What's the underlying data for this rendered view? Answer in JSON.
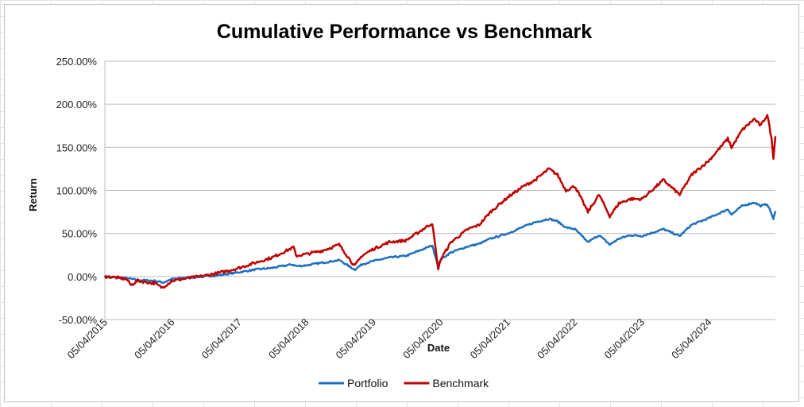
{
  "chart_data": {
    "type": "line",
    "title": "Cumulative Performance vs Benchmark",
    "xlabel": "Date",
    "ylabel": "Return",
    "x_tick_labels": [
      "05/04/2015",
      "05/04/2016",
      "05/04/2017",
      "05/04/2018",
      "05/04/2019",
      "05/04/2020",
      "05/04/2021",
      "05/04/2022",
      "05/04/2023",
      "05/04/2024"
    ],
    "x_range": [
      "2015-04-05",
      "2025-03-31"
    ],
    "y_tick_labels": [
      "-50.00%",
      "0.00%",
      "50.00%",
      "100.00%",
      "150.00%",
      "200.00%",
      "250.00%"
    ],
    "ylim": [
      -50,
      250
    ],
    "grid": "horizontal",
    "legend": "bottom",
    "series": [
      {
        "name": "Portfolio",
        "color": "#1f6fbf",
        "points": [
          [
            "2015-04-05",
            0
          ],
          [
            "2015-06-01",
            -1
          ],
          [
            "2015-08-01",
            -2
          ],
          [
            "2015-10-01",
            -4
          ],
          [
            "2016-01-01",
            -5
          ],
          [
            "2016-02-15",
            -7
          ],
          [
            "2016-04-05",
            -3
          ],
          [
            "2016-07-01",
            -1
          ],
          [
            "2016-10-01",
            0
          ],
          [
            "2017-01-01",
            2
          ],
          [
            "2017-04-05",
            5
          ],
          [
            "2017-07-01",
            8
          ],
          [
            "2017-10-01",
            10
          ],
          [
            "2018-01-15",
            14
          ],
          [
            "2018-02-15",
            12
          ],
          [
            "2018-04-05",
            13
          ],
          [
            "2018-07-01",
            16
          ],
          [
            "2018-10-01",
            19
          ],
          [
            "2018-12-24",
            8
          ],
          [
            "2019-02-01",
            14
          ],
          [
            "2019-04-05",
            18
          ],
          [
            "2019-07-01",
            22
          ],
          [
            "2019-10-01",
            24
          ],
          [
            "2020-02-19",
            36
          ],
          [
            "2020-03-23",
            12
          ],
          [
            "2020-04-05",
            20
          ],
          [
            "2020-06-01",
            28
          ],
          [
            "2020-09-01",
            35
          ],
          [
            "2020-11-01",
            38
          ],
          [
            "2021-01-01",
            44
          ],
          [
            "2021-04-05",
            50
          ],
          [
            "2021-07-01",
            58
          ],
          [
            "2021-09-01",
            63
          ],
          [
            "2021-11-15",
            67
          ],
          [
            "2022-01-01",
            64
          ],
          [
            "2022-02-15",
            57
          ],
          [
            "2022-04-05",
            55
          ],
          [
            "2022-06-15",
            40
          ],
          [
            "2022-08-15",
            48
          ],
          [
            "2022-10-12",
            37
          ],
          [
            "2022-12-01",
            44
          ],
          [
            "2023-02-01",
            48
          ],
          [
            "2023-04-05",
            47
          ],
          [
            "2023-07-31",
            55
          ],
          [
            "2023-10-27",
            47
          ],
          [
            "2023-12-31",
            60
          ],
          [
            "2024-04-05",
            68
          ],
          [
            "2024-07-15",
            78
          ],
          [
            "2024-08-05",
            72
          ],
          [
            "2024-10-01",
            82
          ],
          [
            "2024-12-06",
            86
          ],
          [
            "2025-01-10",
            82
          ],
          [
            "2025-02-15",
            84
          ],
          [
            "2025-03-10",
            73
          ],
          [
            "2025-03-20",
            66
          ],
          [
            "2025-03-31",
            76
          ]
        ]
      },
      {
        "name": "Benchmark",
        "color": "#c00000",
        "points": [
          [
            "2015-04-05",
            0
          ],
          [
            "2015-06-01",
            -1
          ],
          [
            "2015-08-01",
            -3
          ],
          [
            "2015-08-25",
            -10
          ],
          [
            "2015-10-01",
            -5
          ],
          [
            "2016-01-01",
            -8
          ],
          [
            "2016-02-11",
            -13
          ],
          [
            "2016-04-05",
            -5
          ],
          [
            "2016-07-01",
            -2
          ],
          [
            "2016-10-01",
            1
          ],
          [
            "2017-01-01",
            5
          ],
          [
            "2017-04-05",
            10
          ],
          [
            "2017-07-01",
            16
          ],
          [
            "2017-10-01",
            22
          ],
          [
            "2018-01-26",
            34
          ],
          [
            "2018-02-08",
            24
          ],
          [
            "2018-04-05",
            26
          ],
          [
            "2018-07-01",
            30
          ],
          [
            "2018-10-01",
            37
          ],
          [
            "2018-12-24",
            12
          ],
          [
            "2019-02-01",
            24
          ],
          [
            "2019-04-05",
            32
          ],
          [
            "2019-07-01",
            40
          ],
          [
            "2019-10-01",
            42
          ],
          [
            "2020-02-19",
            62
          ],
          [
            "2020-03-23",
            8
          ],
          [
            "2020-04-05",
            20
          ],
          [
            "2020-06-01",
            40
          ],
          [
            "2020-09-01",
            55
          ],
          [
            "2020-11-01",
            60
          ],
          [
            "2021-01-01",
            75
          ],
          [
            "2021-04-05",
            92
          ],
          [
            "2021-07-01",
            105
          ],
          [
            "2021-09-01",
            112
          ],
          [
            "2021-11-15",
            125
          ],
          [
            "2022-01-01",
            118
          ],
          [
            "2022-02-15",
            100
          ],
          [
            "2022-04-05",
            105
          ],
          [
            "2022-06-15",
            75
          ],
          [
            "2022-08-15",
            95
          ],
          [
            "2022-10-12",
            70
          ],
          [
            "2022-12-01",
            85
          ],
          [
            "2023-02-01",
            90
          ],
          [
            "2023-04-05",
            90
          ],
          [
            "2023-07-31",
            112
          ],
          [
            "2023-10-27",
            95
          ],
          [
            "2023-12-31",
            118
          ],
          [
            "2024-04-05",
            135
          ],
          [
            "2024-07-15",
            160
          ],
          [
            "2024-08-05",
            150
          ],
          [
            "2024-10-01",
            170
          ],
          [
            "2024-12-06",
            183
          ],
          [
            "2025-01-10",
            175
          ],
          [
            "2025-02-15",
            188
          ],
          [
            "2025-03-10",
            160
          ],
          [
            "2025-03-20",
            138
          ],
          [
            "2025-03-31",
            163
          ]
        ]
      }
    ]
  }
}
